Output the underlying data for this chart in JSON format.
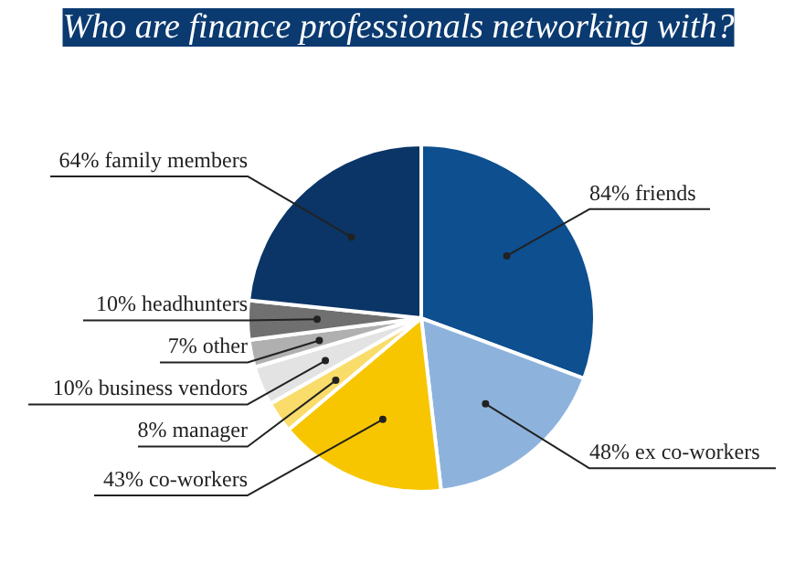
{
  "chart_data": {
    "type": "pie",
    "title": "Who are finance professionals networking with?",
    "categories": [
      "friends",
      "ex co-workers",
      "co-workers",
      "manager",
      "business vendors",
      "other",
      "headhunters",
      "family members"
    ],
    "values": [
      84,
      48,
      43,
      8,
      10,
      7,
      10,
      64
    ],
    "value_labels": [
      "84%",
      "48%",
      "43%",
      "8%",
      "10%",
      "7%",
      "10%",
      "64%"
    ],
    "colors": [
      "#0d4f8f",
      "#8db3dd",
      "#f7c600",
      "#f9dc6a",
      "#e3e3e3",
      "#b0b0b0",
      "#707070",
      "#0a3566"
    ]
  }
}
